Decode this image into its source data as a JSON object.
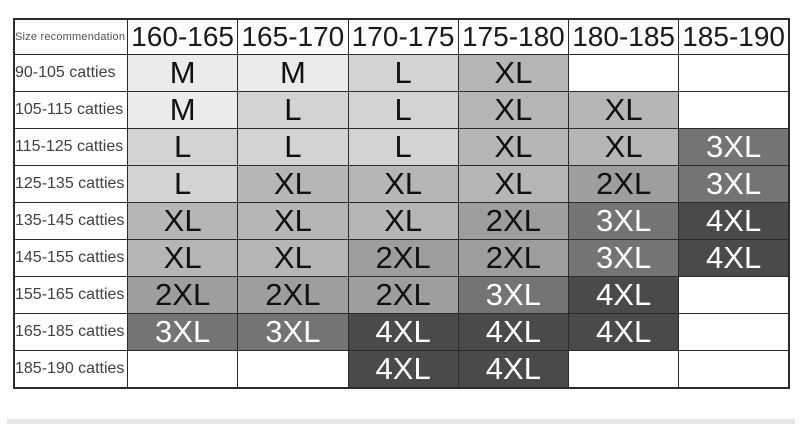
{
  "chart_data": {
    "type": "table",
    "corner_label": "Size recommendation",
    "height_columns": [
      "160-165",
      "165-170",
      "170-175",
      "175-180",
      "180-185",
      "185-190"
    ],
    "rows": [
      {
        "label": "90-105 catties",
        "cells": [
          "M",
          "M",
          "L",
          "XL",
          "",
          ""
        ]
      },
      {
        "label": "105-115 catties",
        "cells": [
          "M",
          "L",
          "L",
          "XL",
          "XL",
          ""
        ]
      },
      {
        "label": "115-125 catties",
        "cells": [
          "L",
          "L",
          "L",
          "XL",
          "XL",
          "3XL"
        ]
      },
      {
        "label": "125-135 catties",
        "cells": [
          "L",
          "XL",
          "XL",
          "XL",
          "2XL",
          "3XL"
        ]
      },
      {
        "label": "135-145 catties",
        "cells": [
          "XL",
          "XL",
          "XL",
          "2XL",
          "3XL",
          "4XL"
        ]
      },
      {
        "label": "145-155 catties",
        "cells": [
          "XL",
          "XL",
          "2XL",
          "2XL",
          "3XL",
          "4XL"
        ]
      },
      {
        "label": "155-165 catties",
        "cells": [
          "2XL",
          "2XL",
          "2XL",
          "3XL",
          "4XL",
          ""
        ]
      },
      {
        "label": "165-185 catties",
        "cells": [
          "3XL",
          "3XL",
          "4XL",
          "4XL",
          "4XL",
          ""
        ]
      },
      {
        "label": "185-190 catties",
        "cells": [
          "",
          "",
          "4XL",
          "4XL",
          "",
          ""
        ]
      }
    ],
    "size_colors": {
      "M": {
        "bg": "#ebebeb",
        "text": "#111111"
      },
      "L": {
        "bg": "#d3d3d3",
        "text": "#111111"
      },
      "XL": {
        "bg": "#b6b6b6",
        "text": "#111111"
      },
      "2XL": {
        "bg": "#9e9e9e",
        "text": "#111111"
      },
      "3XL": {
        "bg": "#747474",
        "text": "#ffffff"
      },
      "4XL": {
        "bg": "#4a4a4a",
        "text": "#ffffff"
      },
      "empty": {
        "bg": "#ffffff",
        "text": "#111111"
      }
    },
    "grid": {
      "border_color": "#2b2b2b",
      "border_on": true
    },
    "bottom_strip_color": "#e7e7e7"
  }
}
